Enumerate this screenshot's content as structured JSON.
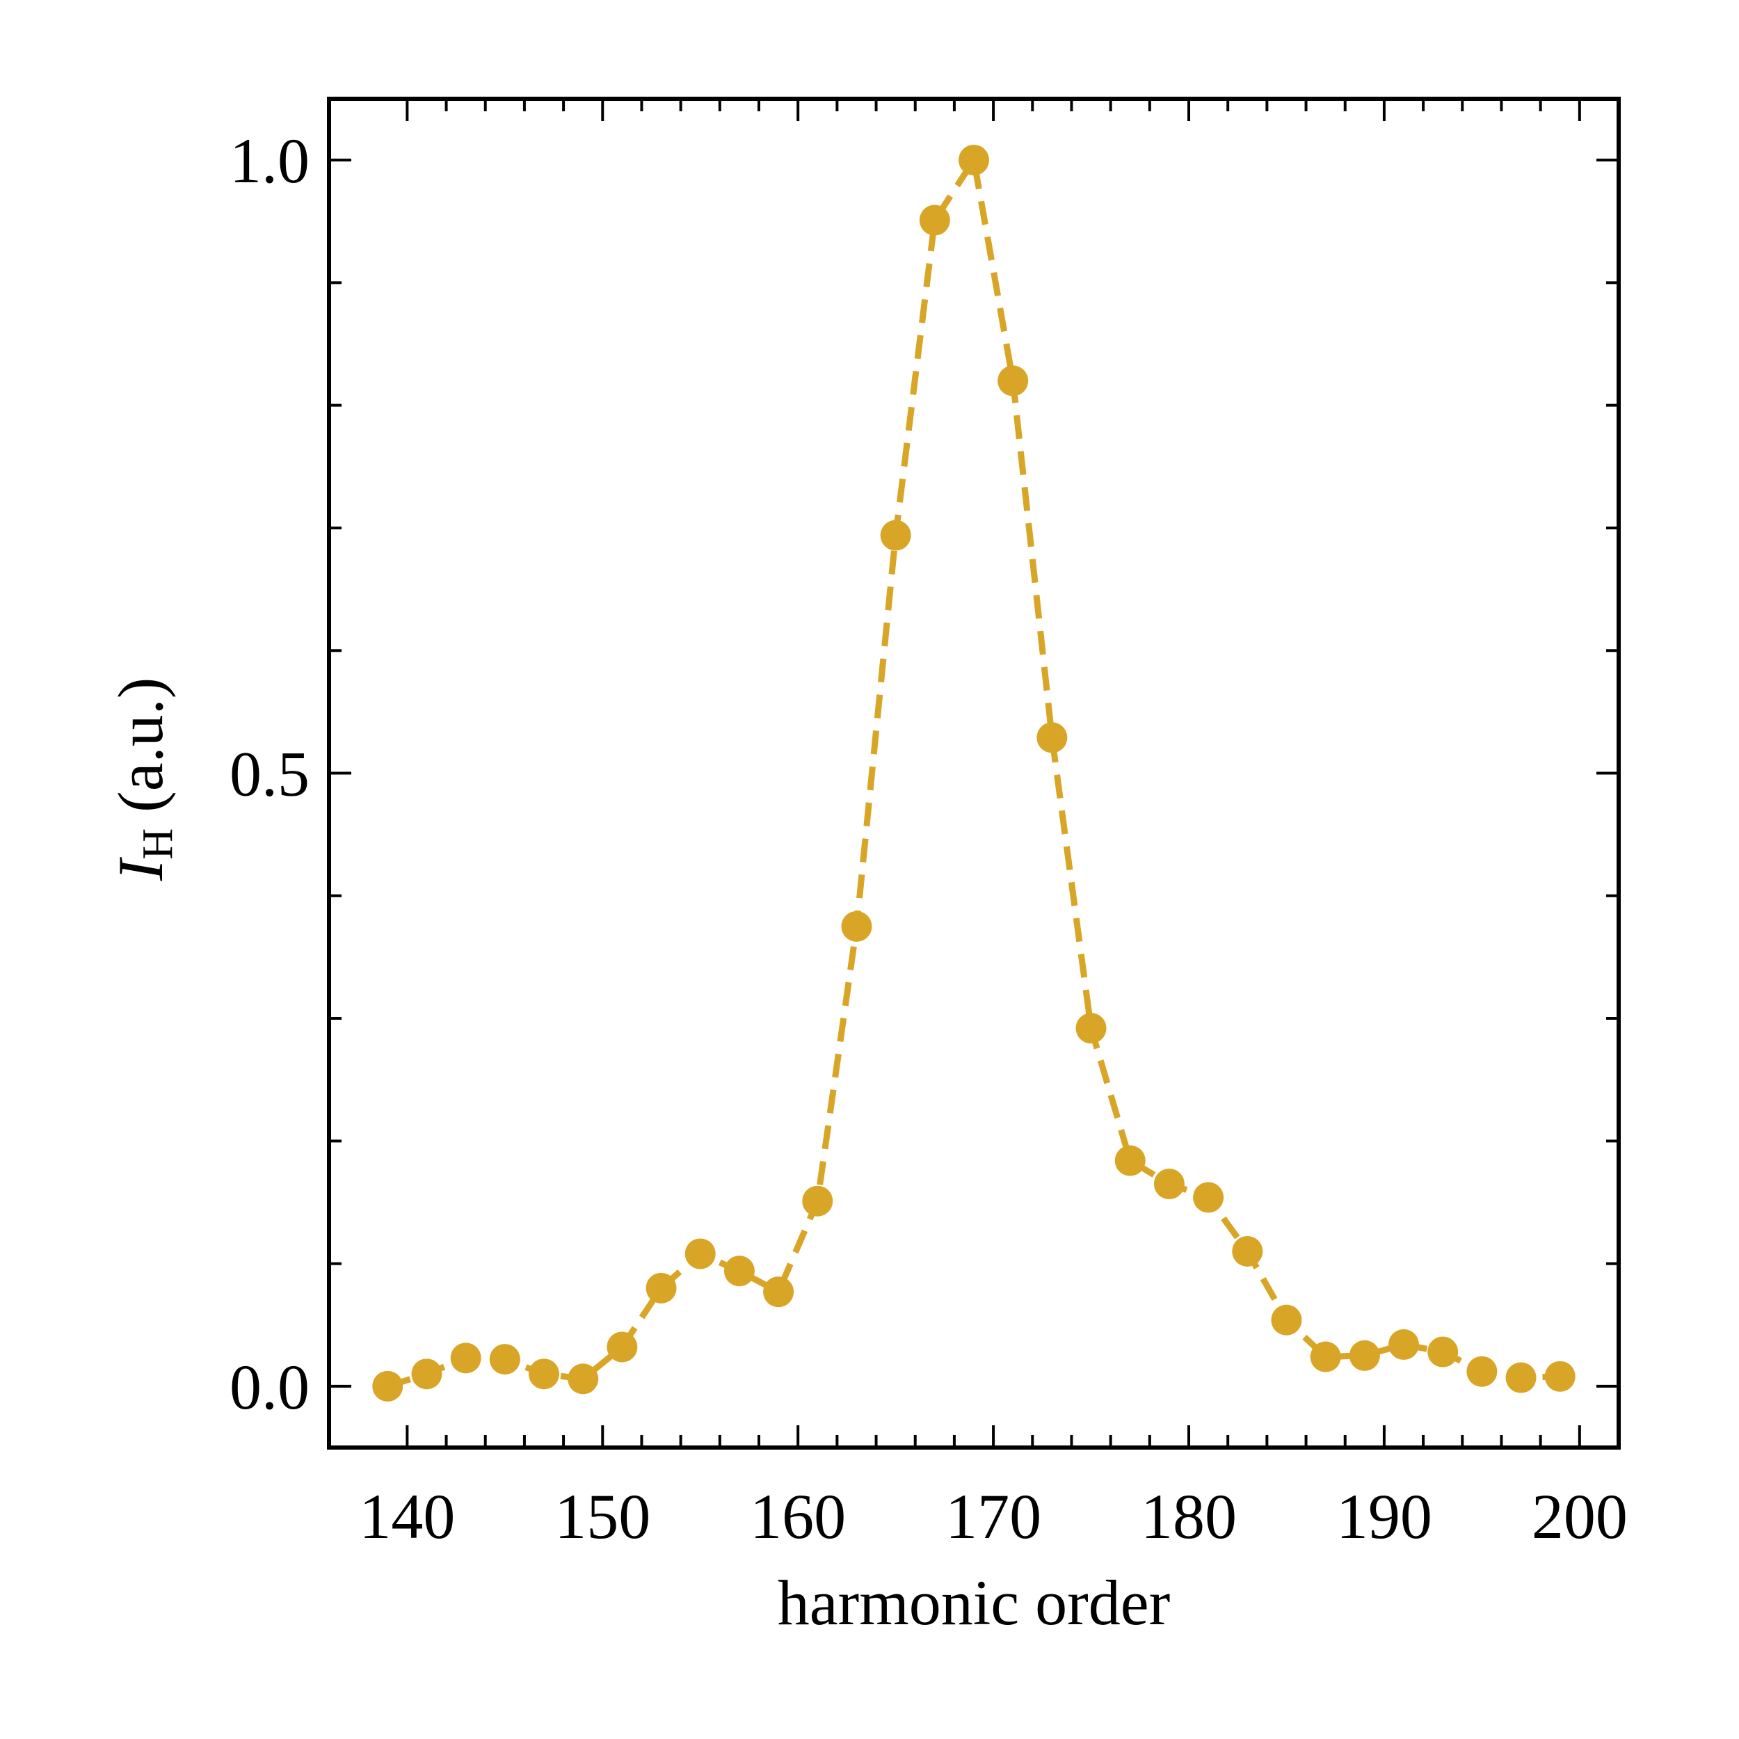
{
  "chart_data": {
    "type": "line",
    "xlabel": "harmonic order",
    "ylabel_main": "I",
    "ylabel_sub": "H",
    "ylabel_rest": " (a.u.)",
    "xlim": [
      136,
      202
    ],
    "ylim": [
      -0.05,
      1.05
    ],
    "x_ticks": [
      140,
      150,
      160,
      170,
      180,
      190,
      200
    ],
    "x_minor_ticks": [
      142,
      144,
      146,
      148,
      152,
      154,
      156,
      158,
      162,
      164,
      166,
      168,
      172,
      174,
      176,
      178,
      182,
      184,
      186,
      188,
      192,
      194,
      196,
      198
    ],
    "y_ticks": [
      0.0,
      0.5,
      1.0
    ],
    "y_tick_labels": [
      "0.0",
      "0.5",
      "1.0"
    ],
    "y_minor_ticks": [
      0.1,
      0.2,
      0.3,
      0.4,
      0.6,
      0.7,
      0.8,
      0.9
    ],
    "grid": false,
    "line_style": "dashed",
    "color": "#D9A526",
    "series": [
      {
        "x": [
          139,
          141,
          143,
          145,
          147,
          149,
          151,
          153,
          155,
          157,
          159,
          161,
          163,
          165,
          167,
          169,
          171,
          173,
          175,
          177,
          179,
          181,
          183,
          185,
          187,
          189,
          191,
          193,
          195,
          197,
          199
        ],
        "values": [
          0.0,
          0.01,
          0.023,
          0.022,
          0.01,
          0.006,
          0.032,
          0.08,
          0.108,
          0.094,
          0.077,
          0.151,
          0.375,
          0.694,
          0.951,
          1.0,
          0.82,
          0.529,
          0.292,
          0.184,
          0.165,
          0.154,
          0.11,
          0.054,
          0.024,
          0.025,
          0.034,
          0.028,
          0.012,
          0.007,
          0.008
        ]
      }
    ]
  }
}
